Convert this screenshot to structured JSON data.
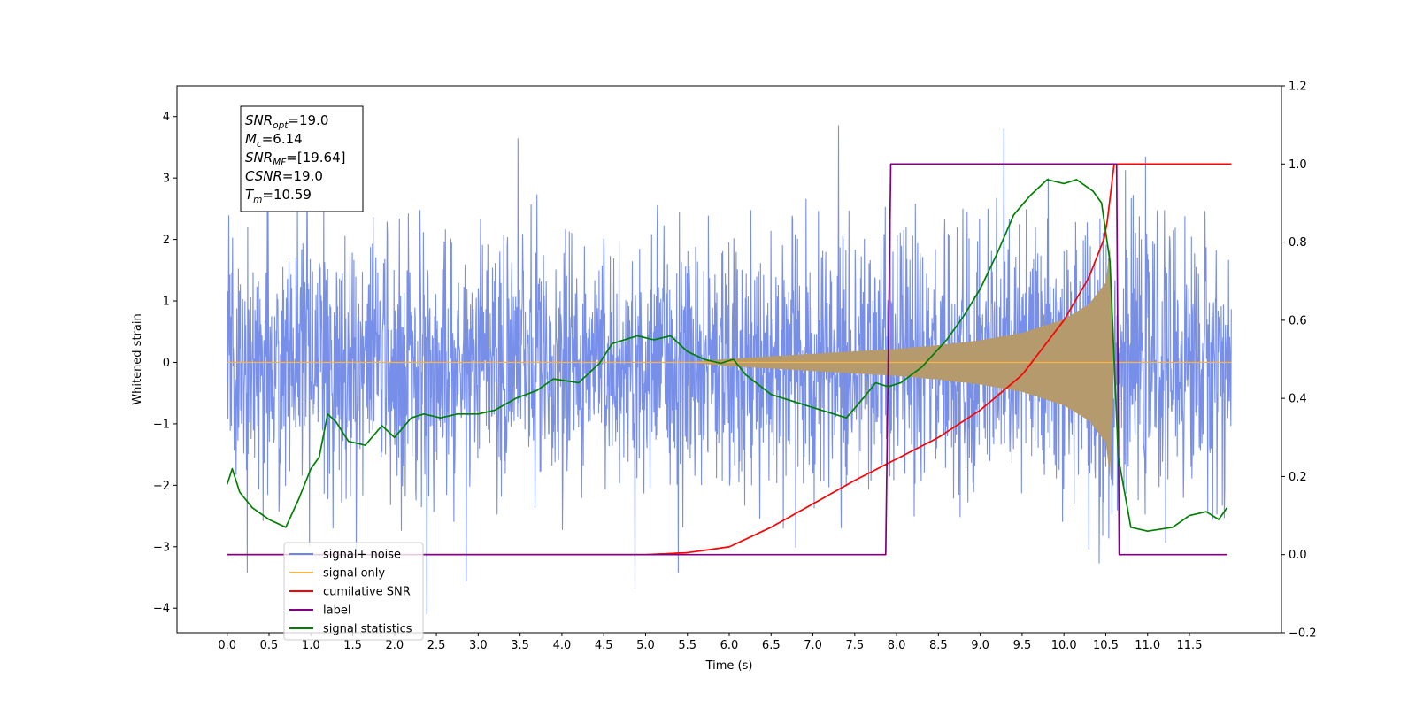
{
  "chart_data": {
    "type": "line",
    "title": "",
    "xlabel": "Time (s)",
    "ylabel": "Whitened strain",
    "xlim": [
      -0.6,
      12.6
    ],
    "ylim": [
      -4.4,
      4.5
    ],
    "y2lim": [
      -0.2,
      1.2
    ],
    "x_ticks": [
      0,
      0.5,
      1,
      1.5,
      2,
      2.5,
      3,
      3.5,
      4,
      4.5,
      5,
      5.5,
      6,
      6.5,
      7,
      7.5,
      8,
      8.5,
      9,
      9.5,
      10,
      10.5,
      11,
      11.5
    ],
    "x_tick_labels": [
      "0.0",
      "0.5",
      "1.0",
      "1.5",
      "2.0",
      "2.5",
      "3.0",
      "3.5",
      "4.0",
      "4.5",
      "5.0",
      "5.5",
      "6.0",
      "6.5",
      "7.0",
      "7.5",
      "8.0",
      "8.5",
      "9.0",
      "9.5",
      "10.0",
      "10.5",
      "11.0",
      "11.5"
    ],
    "y_ticks": [
      -4,
      -3,
      -2,
      -1,
      0,
      1,
      2,
      3,
      4
    ],
    "y_tick_labels": [
      "−4",
      "−3",
      "−2",
      "−1",
      "0",
      "1",
      "2",
      "3",
      "4"
    ],
    "y2_ticks": [
      -0.2,
      0,
      0.2,
      0.4,
      0.6,
      0.8,
      1.0,
      1.2
    ],
    "y2_tick_labels": [
      "−0.2",
      "0.0",
      "0.2",
      "0.4",
      "0.6",
      "0.8",
      "1.0",
      "1.2"
    ],
    "grid": false,
    "legend_position": "lower-left",
    "series": [
      {
        "name": "signal+ noise",
        "axis": "left",
        "color": "#6b86e6",
        "x_range": [
          0,
          12.0
        ],
        "typical_band": [
          -1.6,
          1.6
        ],
        "extremes_approx": [
          4.15,
          -3.9
        ]
      },
      {
        "name": "signal only",
        "axis": "left",
        "color": "#ffb347",
        "x_range": [
          0,
          12.0
        ],
        "envelope": {
          "x": [
            0,
            5.5,
            6.0,
            7.0,
            8.0,
            8.5,
            9.0,
            9.5,
            10.0,
            10.3,
            10.5,
            10.56,
            10.6,
            12.0
          ],
          "amp": [
            0,
            0,
            0.06,
            0.14,
            0.22,
            0.28,
            0.36,
            0.48,
            0.7,
            0.95,
            1.3,
            2.0,
            0,
            0
          ]
        }
      },
      {
        "name": "cumilative SNR",
        "axis": "right",
        "color": "#ff0000",
        "x": [
          0,
          5.0,
          5.5,
          6.0,
          6.5,
          7.0,
          7.5,
          8.0,
          8.5,
          9.0,
          9.5,
          10.0,
          10.3,
          10.5,
          10.6,
          12.0
        ],
        "y": [
          0,
          0,
          0.005,
          0.02,
          0.07,
          0.13,
          0.19,
          0.245,
          0.3,
          0.37,
          0.46,
          0.6,
          0.71,
          0.82,
          1.0,
          1.0
        ]
      },
      {
        "name": "label",
        "axis": "right",
        "color": "#800080",
        "x": [
          0,
          7.87,
          7.93,
          10.63,
          10.66,
          11.95
        ],
        "y": [
          0,
          0,
          1,
          1,
          0,
          0
        ]
      },
      {
        "name": "signal statistics",
        "axis": "right",
        "color": "#008000",
        "x": [
          0,
          0.06,
          0.15,
          0.3,
          0.5,
          0.7,
          0.85,
          1.0,
          1.1,
          1.2,
          1.3,
          1.45,
          1.65,
          1.85,
          2.0,
          2.2,
          2.35,
          2.55,
          2.75,
          3.0,
          3.2,
          3.45,
          3.7,
          3.9,
          4.2,
          4.45,
          4.6,
          4.9,
          5.1,
          5.3,
          5.5,
          5.7,
          5.9,
          6.05,
          6.2,
          6.5,
          6.8,
          7.1,
          7.4,
          7.6,
          7.75,
          7.9,
          8.05,
          8.3,
          8.6,
          8.8,
          9.0,
          9.2,
          9.4,
          9.6,
          9.8,
          10.0,
          10.15,
          10.35,
          10.45,
          10.55,
          10.65,
          10.8,
          11.0,
          11.3,
          11.5,
          11.7,
          11.85,
          11.95
        ],
        "y": [
          0.18,
          0.22,
          0.16,
          0.12,
          0.09,
          0.07,
          0.14,
          0.22,
          0.25,
          0.36,
          0.34,
          0.29,
          0.28,
          0.33,
          0.3,
          0.35,
          0.36,
          0.35,
          0.36,
          0.36,
          0.37,
          0.4,
          0.42,
          0.45,
          0.44,
          0.49,
          0.54,
          0.56,
          0.55,
          0.56,
          0.52,
          0.5,
          0.49,
          0.5,
          0.46,
          0.41,
          0.39,
          0.37,
          0.35,
          0.4,
          0.44,
          0.43,
          0.44,
          0.48,
          0.55,
          0.61,
          0.68,
          0.77,
          0.87,
          0.92,
          0.96,
          0.95,
          0.96,
          0.93,
          0.9,
          0.75,
          0.25,
          0.07,
          0.06,
          0.07,
          0.1,
          0.11,
          0.09,
          0.12
        ]
      }
    ],
    "stats_box": {
      "position": "top-left",
      "lines": [
        {
          "main": "SNR",
          "sub": "opt",
          "value": "=19.0"
        },
        {
          "main": "M",
          "sub": "c",
          "value": "=6.14"
        },
        {
          "main": "SNR",
          "sub": "MF",
          "value": "=[19.64]"
        },
        {
          "main": "CSNR",
          "sub": "",
          "value": "=19.0"
        },
        {
          "main": "T",
          "sub": "m",
          "value": "=10.59"
        }
      ]
    }
  }
}
